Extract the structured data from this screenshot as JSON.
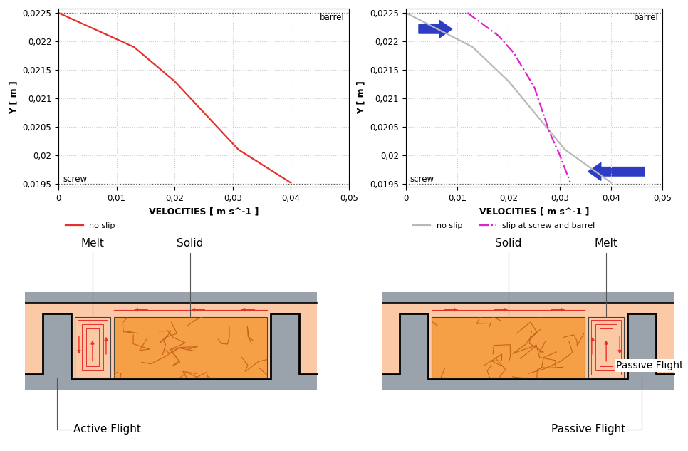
{
  "chart_data": [
    {
      "type": "line",
      "x_label": "VELOCITIES [ m s^-1 ]",
      "y_label": "Y [ m ]",
      "xlim": [
        0,
        0.05
      ],
      "ylim": [
        0.01945,
        0.022575
      ],
      "xticks": [
        0,
        {
          "value": 0.01,
          "label": "0,01"
        },
        {
          "value": 0.02,
          "label": "0,02"
        },
        {
          "value": 0.03,
          "label": "0,03"
        },
        {
          "value": 0.04,
          "label": "0,04"
        },
        {
          "value": 0.05,
          "label": "0,05"
        }
      ],
      "yticks": [
        {
          "value": 0.0195,
          "label": "0,0195"
        },
        {
          "value": 0.02,
          "label": "0,02"
        },
        {
          "value": 0.0205,
          "label": "0,0205"
        },
        {
          "value": 0.021,
          "label": "0,021"
        },
        {
          "value": 0.0215,
          "label": "0,0215"
        },
        {
          "value": 0.022,
          "label": "0,022"
        },
        {
          "value": 0.0225,
          "label": "0,0225"
        }
      ],
      "grid": true,
      "legend": "upper left",
      "reference_lines": [
        {
          "label": "barrel",
          "value": 0.0225
        },
        {
          "label": "screw",
          "value": 0.0195
        }
      ],
      "series": [
        {
          "name": "no slip",
          "color": "#e8302a",
          "line_style": "solid",
          "x": [
            0,
            0.013,
            0.02,
            0.031,
            0.04
          ],
          "values": [
            0.0225,
            0.0219,
            0.0213,
            0.0201,
            0.01952
          ]
        }
      ]
    },
    {
      "type": "line",
      "x_label": "VELOCITIES [ m s^-1 ]",
      "y_label": "Y [ m ]",
      "xlim": [
        0,
        0.05
      ],
      "ylim": [
        0.01945,
        0.022575
      ],
      "xticks": [
        0,
        {
          "value": 0.01,
          "label": "0,01"
        },
        {
          "value": 0.02,
          "label": "0,02"
        },
        {
          "value": 0.03,
          "label": "0,03"
        },
        {
          "value": 0.04,
          "label": "0,04"
        },
        {
          "value": 0.05,
          "label": "0,05"
        }
      ],
      "yticks": [
        {
          "value": 0.0195,
          "label": "0,0195"
        },
        {
          "value": 0.02,
          "label": "0,02"
        },
        {
          "value": 0.0205,
          "label": "0,0205"
        },
        {
          "value": 0.021,
          "label": "0,021"
        },
        {
          "value": 0.0215,
          "label": "0,0215"
        },
        {
          "value": 0.022,
          "label": "0,022"
        },
        {
          "value": 0.0225,
          "label": "0,0225"
        }
      ],
      "grid": true,
      "legend": "upper left",
      "reference_lines": [
        {
          "label": "barrel",
          "value": 0.0225
        },
        {
          "label": "screw",
          "value": 0.0195
        }
      ],
      "series": [
        {
          "name": "no slip",
          "color": "#b8b8b8",
          "line_style": "solid",
          "x": [
            0,
            0.013,
            0.02,
            0.031,
            0.04
          ],
          "values": [
            0.0225,
            0.0219,
            0.0213,
            0.0201,
            0.01952
          ]
        },
        {
          "name": "slip at screw and barrel",
          "color": "#e020d0",
          "line_style": "dashdot",
          "x": [
            0.012,
            0.018,
            0.021,
            0.025,
            0.028,
            0.03,
            0.032
          ],
          "values": [
            0.0225,
            0.0221,
            0.0218,
            0.0212,
            0.0204,
            0.02,
            0.01953
          ]
        }
      ]
    }
  ],
  "diagrams": [
    {
      "melt_side": "left",
      "labels": {
        "melt": "Melt",
        "solid": "Solid",
        "flight": "Active Flight"
      }
    },
    {
      "melt_side": "right",
      "labels": {
        "solid": "Solid",
        "melt": "Melt",
        "flight_upper": "Passive Flight",
        "flight": "Passive Flight"
      }
    }
  ]
}
